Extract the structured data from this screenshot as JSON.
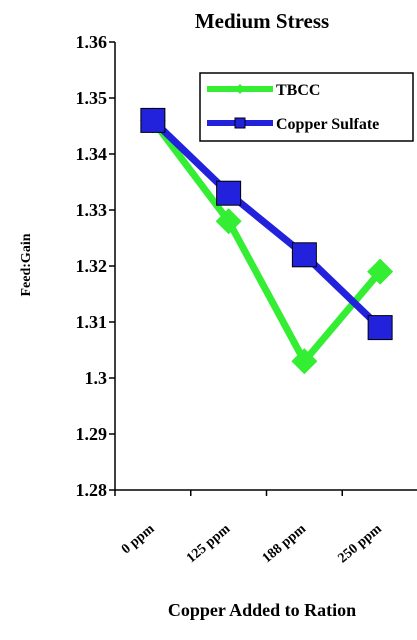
{
  "chart_data": {
    "type": "line",
    "title": "Medium Stress",
    "xlabel": "Copper Added to Ration",
    "ylabel": "Feed:Gain",
    "categories": [
      "0 ppm",
      "125 ppm",
      "188 ppm",
      "250 ppm"
    ],
    "ylim": [
      1.28,
      1.36
    ],
    "yticks": [
      "1.28",
      "1.29",
      "1.3",
      "1.31",
      "1.32",
      "1.33",
      "1.34",
      "1.35",
      "1.36"
    ],
    "legend_position": "top-right",
    "grid": false,
    "series": [
      {
        "name": "TBCC",
        "color": "#33ee33",
        "marker": "diamond",
        "values": [
          1.346,
          1.328,
          1.303,
          1.319
        ]
      },
      {
        "name": "Copper Sulfate",
        "color": "#2222dd",
        "marker": "square",
        "values": [
          1.346,
          1.333,
          1.322,
          1.309
        ]
      }
    ]
  }
}
